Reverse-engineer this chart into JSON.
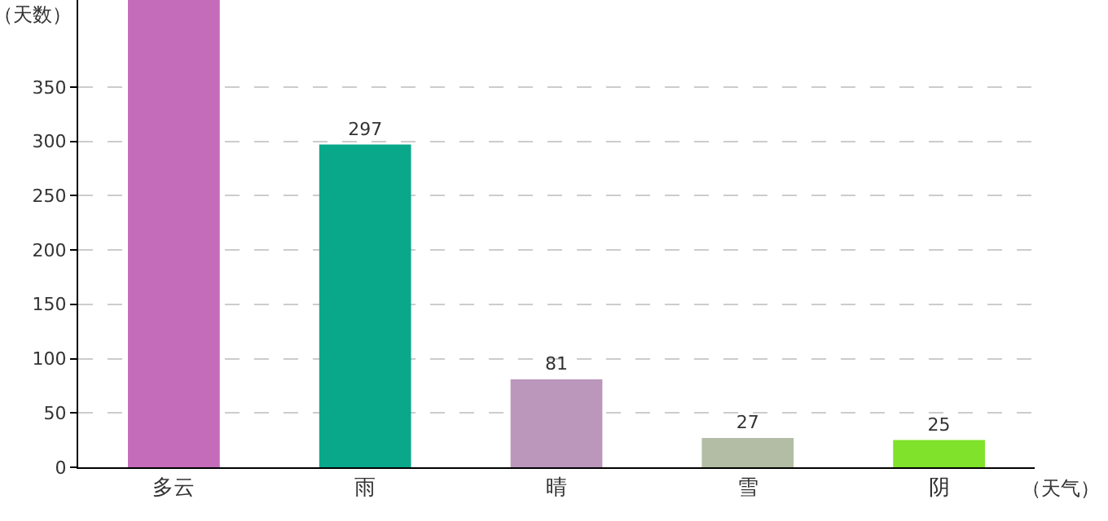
{
  "chart_data": {
    "type": "bar",
    "ylabel": "（天数）",
    "xlabel": "（天气）",
    "categories": [
      "多云",
      "雨",
      "晴",
      "雪",
      "阴"
    ],
    "values": [
      430,
      297,
      81,
      27,
      25
    ],
    "colors": [
      "#c46cba",
      "#0aa88a",
      "#ba97bb",
      "#b3bda5",
      "#80e22a"
    ],
    "value_labels": [
      null,
      "297",
      "81",
      "27",
      "25"
    ],
    "ylim": [
      0,
      430
    ],
    "yticks": [
      0,
      50,
      100,
      150,
      200,
      250,
      300,
      350
    ],
    "grid": "y",
    "legend": false
  }
}
